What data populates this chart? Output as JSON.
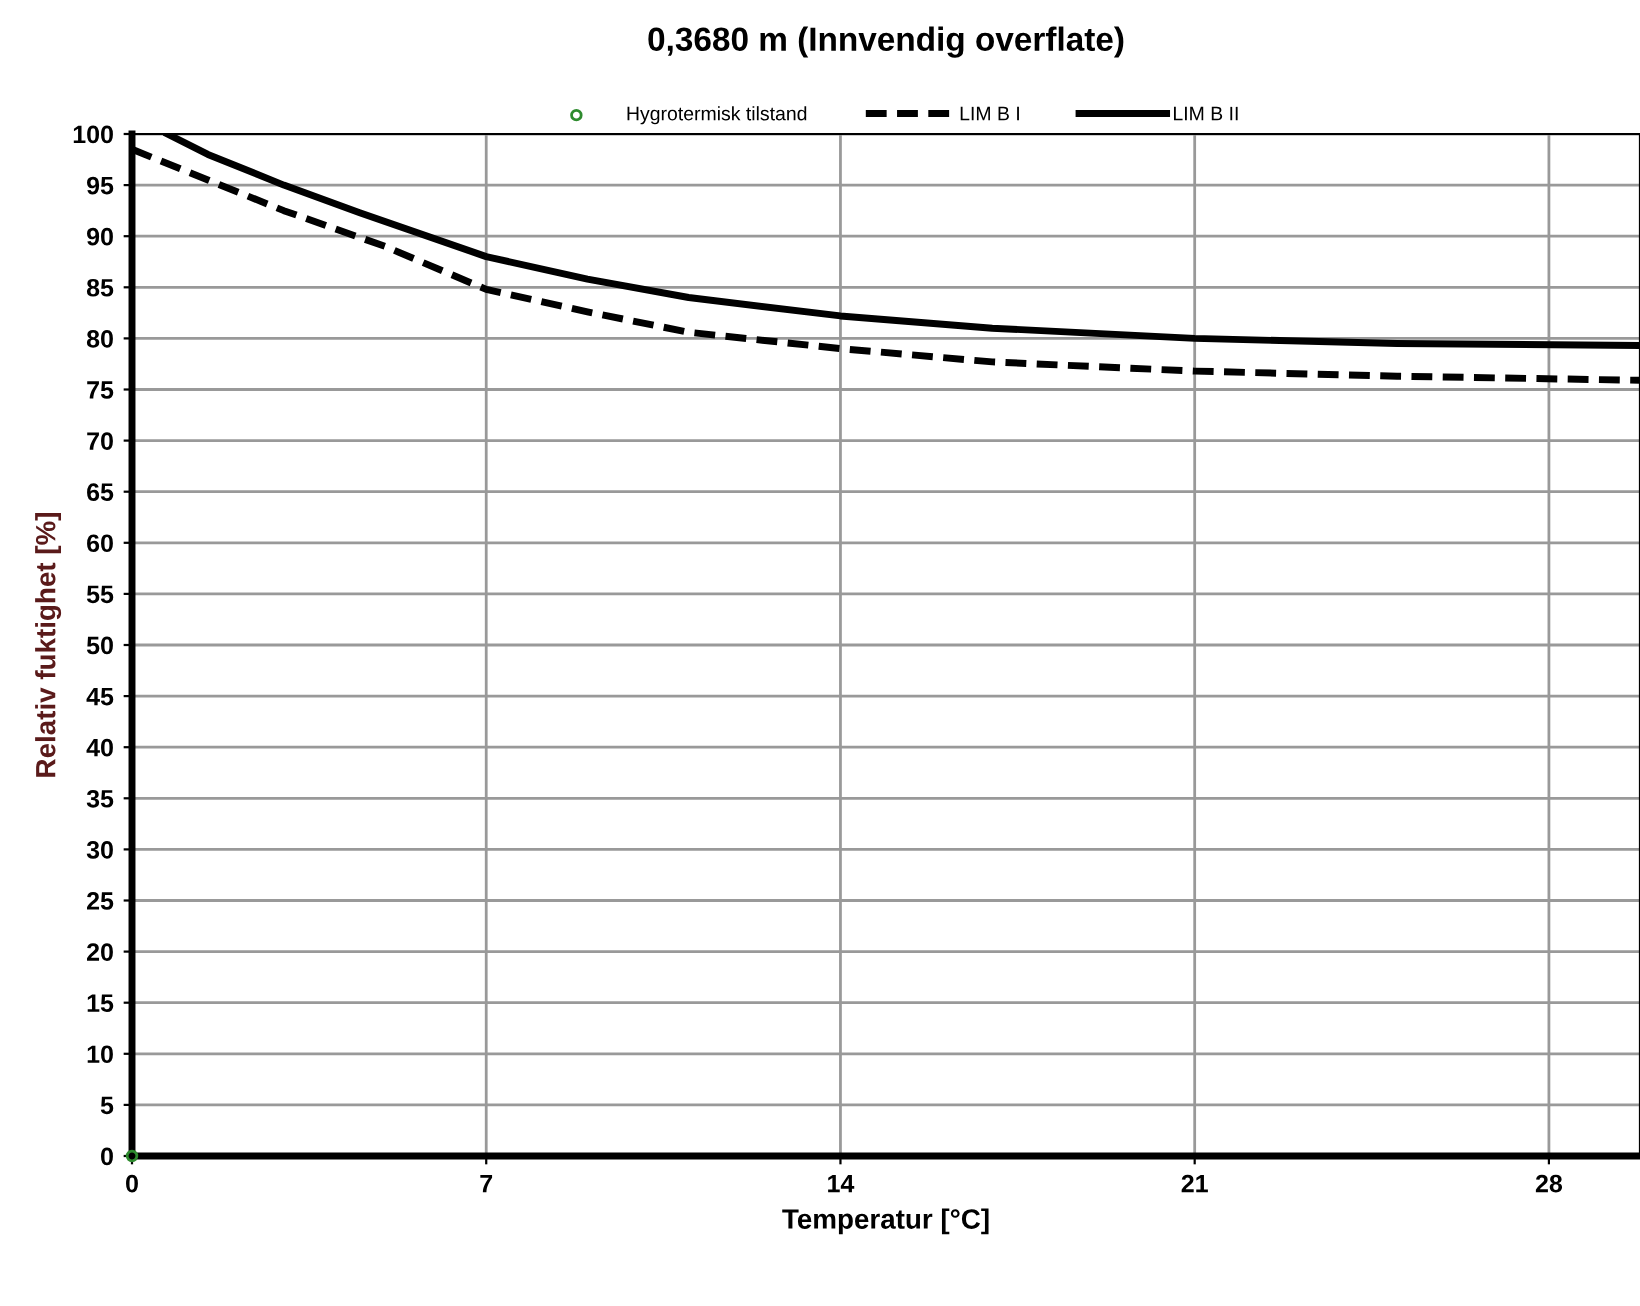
{
  "chart_data": {
    "type": "line",
    "title": "0,3680 m (Innvendig overflate)",
    "xlabel": "Temperatur [°C]",
    "ylabel": "Relativ fuktighet [%]",
    "xlim": [
      0,
      29.8
    ],
    "xticks": [
      0,
      7,
      14,
      21,
      28
    ],
    "ylim": [
      0,
      100
    ],
    "yticks": [
      0,
      5,
      10,
      15,
      20,
      25,
      30,
      35,
      40,
      45,
      50,
      55,
      60,
      65,
      70,
      75,
      80,
      85,
      90,
      95,
      100
    ],
    "grid": true,
    "legend": "top",
    "series": [
      {
        "name": "Hygrotermisk tilstand",
        "type": "scatter",
        "marker": "circle",
        "color": "#2e8b2e",
        "x": [
          0
        ],
        "values": [
          0
        ]
      },
      {
        "name": "LIM B I",
        "line_style": "dashed",
        "color": "#000000",
        "x": [
          0,
          1.5,
          3,
          5,
          7,
          9,
          11,
          14,
          17,
          21,
          25,
          29.8
        ],
        "values": [
          98.5,
          95.5,
          92.5,
          89,
          84.8,
          82.6,
          80.6,
          79,
          77.7,
          76.8,
          76.3,
          75.9
        ]
      },
      {
        "name": "LIM B II",
        "line_style": "solid",
        "color": "#000000",
        "x": [
          0.7,
          1.5,
          3,
          4.5,
          7,
          9,
          11,
          14,
          17,
          21,
          25,
          29.8
        ],
        "values": [
          100,
          98,
          95,
          92.3,
          88,
          85.8,
          84,
          82.2,
          81,
          80,
          79.5,
          79.3
        ]
      }
    ]
  }
}
